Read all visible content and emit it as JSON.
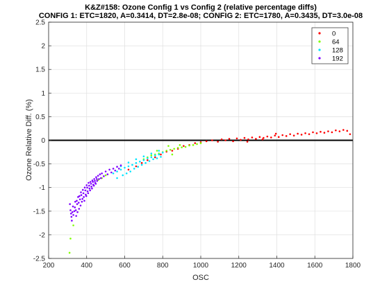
{
  "chart_data": {
    "type": "scatter",
    "title": "K&Z#158: Ozone Config 1 vs Config 2 (relative percentage diffs)",
    "subtitle": "CONFIG 1: ETC=1820, A=0.3414, DT=2.8e-08; CONFIG 2: ETC=1780, A=0.3435, DT=3.0e-08",
    "xlabel": "OSC",
    "ylabel": "Ozone Relative Diff. (%)",
    "xlim": [
      200,
      1800
    ],
    "ylim": [
      -2.5,
      2.5
    ],
    "xticks": [
      "200",
      "400",
      "600",
      "800",
      "1000",
      "1200",
      "1400",
      "1600",
      "1800"
    ],
    "yticks": [
      "-2.5",
      "-2",
      "-1.5",
      "-1",
      "-0.5",
      "0",
      "0.5",
      "1",
      "1.5",
      "2",
      "2.5"
    ],
    "grid": true,
    "legend_position": "top-right",
    "reference_line": {
      "y": 0
    },
    "series": [
      {
        "name": "0",
        "color": "#ff0000",
        "points": [
          [
            620,
            -0.62
          ],
          [
            660,
            -0.55
          ],
          [
            690,
            -0.48
          ],
          [
            720,
            -0.42
          ],
          [
            760,
            -0.36
          ],
          [
            790,
            -0.3
          ],
          [
            820,
            -0.24
          ],
          [
            850,
            -0.22
          ],
          [
            880,
            -0.18
          ],
          [
            910,
            -0.12
          ],
          [
            940,
            -0.1
          ],
          [
            970,
            -0.06
          ],
          [
            1000,
            -0.04
          ],
          [
            1030,
            -0.02
          ],
          [
            1060,
            0.0
          ],
          [
            1090,
            -0.03
          ],
          [
            1110,
            0.02
          ],
          [
            1130,
            0.0
          ],
          [
            1150,
            0.03
          ],
          [
            1170,
            -0.02
          ],
          [
            1190,
            0.04
          ],
          [
            1210,
            0.01
          ],
          [
            1230,
            0.05
          ],
          [
            1250,
            0.02
          ],
          [
            1270,
            0.06
          ],
          [
            1290,
            0.03
          ],
          [
            1310,
            0.07
          ],
          [
            1330,
            0.05
          ],
          [
            1350,
            0.08
          ],
          [
            1370,
            0.06
          ],
          [
            1390,
            0.1
          ],
          [
            1410,
            0.07
          ],
          [
            1430,
            0.11
          ],
          [
            1450,
            0.09
          ],
          [
            1470,
            0.13
          ],
          [
            1490,
            0.1
          ],
          [
            1510,
            0.14
          ],
          [
            1530,
            0.12
          ],
          [
            1550,
            0.15
          ],
          [
            1570,
            0.13
          ],
          [
            1590,
            0.17
          ],
          [
            1610,
            0.15
          ],
          [
            1630,
            0.18
          ],
          [
            1650,
            0.16
          ],
          [
            1670,
            0.19
          ],
          [
            1690,
            0.17
          ],
          [
            1710,
            0.21
          ],
          [
            1730,
            0.19
          ],
          [
            1750,
            0.22
          ],
          [
            1770,
            0.2
          ],
          [
            1785,
            0.13
          ],
          [
            1395,
            0.14
          ],
          [
            1325,
            0.02
          ],
          [
            1245,
            -0.03
          ]
        ]
      },
      {
        "name": "64",
        "color": "#7fff00",
        "points": [
          [
            310,
            -2.38
          ],
          [
            315,
            -2.08
          ],
          [
            330,
            -1.8
          ],
          [
            460,
            -0.84
          ],
          [
            480,
            -0.8
          ],
          [
            500,
            -0.74
          ],
          [
            700,
            -0.4
          ],
          [
            720,
            -0.36
          ],
          [
            740,
            -0.32
          ],
          [
            760,
            -0.3
          ],
          [
            780,
            -0.28
          ],
          [
            800,
            -0.25
          ],
          [
            820,
            -0.22
          ],
          [
            840,
            -0.2
          ],
          [
            860,
            -0.18
          ],
          [
            880,
            -0.16
          ],
          [
            900,
            -0.15
          ],
          [
            920,
            -0.14
          ],
          [
            940,
            -0.11
          ],
          [
            960,
            -0.1
          ],
          [
            980,
            -0.08
          ],
          [
            1000,
            -0.06
          ],
          [
            770,
            -0.22
          ],
          [
            830,
            -0.12
          ],
          [
            890,
            -0.1
          ],
          [
            850,
            -0.3
          ]
        ]
      },
      {
        "name": "128",
        "color": "#00e5ff",
        "points": [
          [
            540,
            -0.7
          ],
          [
            560,
            -0.66
          ],
          [
            580,
            -0.62
          ],
          [
            600,
            -0.58
          ],
          [
            620,
            -0.55
          ],
          [
            640,
            -0.52
          ],
          [
            660,
            -0.48
          ],
          [
            680,
            -0.45
          ],
          [
            700,
            -0.42
          ],
          [
            720,
            -0.38
          ],
          [
            740,
            -0.36
          ],
          [
            760,
            -0.32
          ],
          [
            780,
            -0.3
          ],
          [
            800,
            -0.26
          ],
          [
            560,
            -0.8
          ],
          [
            590,
            -0.74
          ],
          [
            610,
            -0.7
          ],
          [
            630,
            -0.66
          ],
          [
            650,
            -0.6
          ],
          [
            670,
            -0.56
          ],
          [
            690,
            -0.52
          ],
          [
            710,
            -0.48
          ],
          [
            730,
            -0.44
          ],
          [
            750,
            -0.4
          ],
          [
            770,
            -0.38
          ],
          [
            790,
            -0.35
          ],
          [
            580,
            -0.55
          ],
          [
            620,
            -0.47
          ],
          [
            660,
            -0.4
          ],
          [
            700,
            -0.34
          ],
          [
            740,
            -0.28
          ],
          [
            780,
            -0.22
          ]
        ]
      },
      {
        "name": "192",
        "color": "#7f00ff",
        "points": [
          [
            312,
            -1.35
          ],
          [
            318,
            -1.55
          ],
          [
            322,
            -1.7
          ],
          [
            328,
            -1.4
          ],
          [
            335,
            -1.5
          ],
          [
            340,
            -1.3
          ],
          [
            345,
            -1.6
          ],
          [
            350,
            -1.35
          ],
          [
            355,
            -1.2
          ],
          [
            360,
            -1.45
          ],
          [
            365,
            -1.25
          ],
          [
            370,
            -1.1
          ],
          [
            375,
            -1.3
          ],
          [
            380,
            -1.05
          ],
          [
            385,
            -1.2
          ],
          [
            390,
            -1.0
          ],
          [
            395,
            -1.15
          ],
          [
            400,
            -0.95
          ],
          [
            405,
            -1.08
          ],
          [
            410,
            -0.9
          ],
          [
            415,
            -1.02
          ],
          [
            420,
            -0.88
          ],
          [
            425,
            -0.98
          ],
          [
            430,
            -0.85
          ],
          [
            435,
            -0.94
          ],
          [
            440,
            -0.82
          ],
          [
            445,
            -0.9
          ],
          [
            450,
            -0.78
          ],
          [
            455,
            -0.86
          ],
          [
            460,
            -0.75
          ],
          [
            465,
            -0.82
          ],
          [
            470,
            -0.72
          ],
          [
            475,
            -0.8
          ],
          [
            480,
            -0.7
          ],
          [
            490,
            -0.76
          ],
          [
            500,
            -0.66
          ],
          [
            510,
            -0.72
          ],
          [
            520,
            -0.62
          ],
          [
            530,
            -0.68
          ],
          [
            540,
            -0.6
          ],
          [
            550,
            -0.64
          ],
          [
            560,
            -0.56
          ],
          [
            570,
            -0.6
          ],
          [
            580,
            -0.53
          ],
          [
            315,
            -1.48
          ],
          [
            320,
            -1.62
          ],
          [
            325,
            -1.52
          ],
          [
            330,
            -1.58
          ],
          [
            338,
            -1.42
          ],
          [
            343,
            -1.48
          ],
          [
            348,
            -1.28
          ],
          [
            352,
            -1.52
          ],
          [
            358,
            -1.32
          ],
          [
            362,
            -1.18
          ],
          [
            368,
            -1.38
          ],
          [
            372,
            -1.16
          ],
          [
            378,
            -1.24
          ],
          [
            383,
            -1.12
          ],
          [
            388,
            -1.28
          ],
          [
            393,
            -1.06
          ],
          [
            398,
            -1.18
          ],
          [
            403,
            -1.0
          ],
          [
            408,
            -1.12
          ],
          [
            413,
            -0.96
          ],
          [
            418,
            -1.06
          ],
          [
            423,
            -0.92
          ],
          [
            428,
            -1.02
          ],
          [
            433,
            -0.88
          ],
          [
            438,
            -0.96
          ],
          [
            443,
            -0.86
          ],
          [
            448,
            -0.92
          ],
          [
            453,
            -0.82
          ]
        ]
      }
    ]
  }
}
